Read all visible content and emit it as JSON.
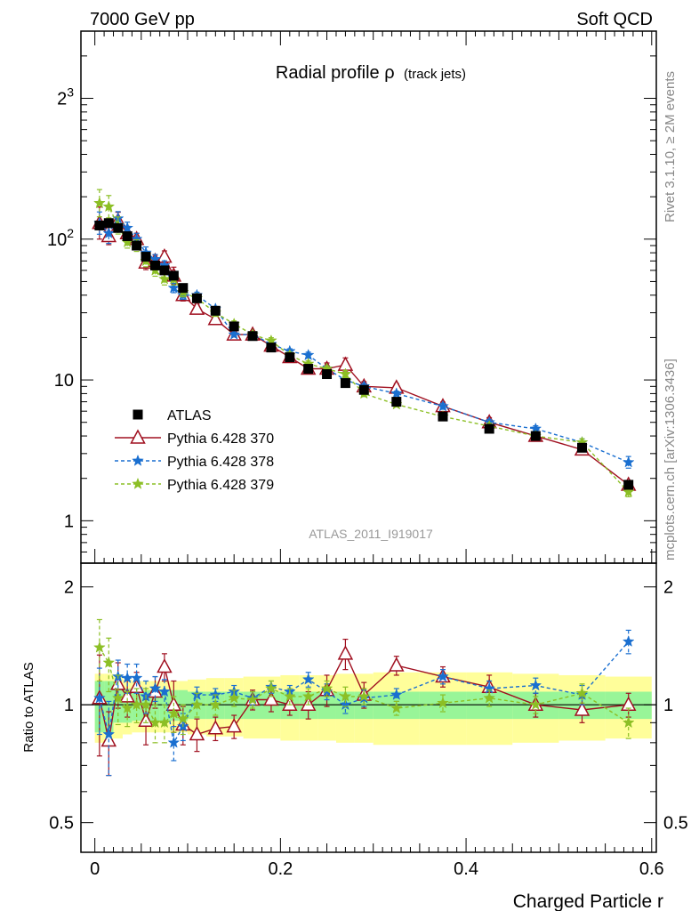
{
  "header": {
    "left": "7000 GeV pp",
    "right": "Soft QCD"
  },
  "side_labels": {
    "top": "Rivet 3.1.10, ≥ 2M events",
    "bottom": "mcplots.cern.ch [arXiv:1306.3436]"
  },
  "watermark": "ATLAS_2011_I919017",
  "chart_data": {
    "type": "scatter",
    "title": "Radial profile ρ",
    "title_suffix": "(track jets)",
    "xlabel": "Charged Particle r",
    "ratio_ylabel": "Ratio to ATLAS",
    "x_ticks": [
      "0",
      "0.2",
      "0.4",
      "0.6"
    ],
    "main_y_ticks": [
      "1",
      "10",
      "10",
      "2"
    ],
    "main_y_tick_exponents": [
      "",
      "",
      "2",
      "3"
    ],
    "ratio_y_ticks": [
      "0.5",
      "1",
      "2"
    ],
    "xlim": [
      -0.015,
      0.605
    ],
    "ylim_main": [
      0.5,
      3000
    ],
    "y_scale": "log",
    "ylim_ratio": [
      0.42,
      2.3
    ],
    "ratio_scale": "log",
    "grid": false,
    "legend": "lower-left",
    "x": [
      0.005,
      0.015,
      0.025,
      0.035,
      0.045,
      0.055,
      0.065,
      0.075,
      0.085,
      0.095,
      0.11,
      0.13,
      0.15,
      0.17,
      0.19,
      0.21,
      0.23,
      0.25,
      0.27,
      0.29,
      0.325,
      0.375,
      0.425,
      0.475,
      0.525,
      0.575
    ],
    "x_halfwidth": [
      0.005,
      0.005,
      0.005,
      0.005,
      0.005,
      0.005,
      0.005,
      0.005,
      0.005,
      0.005,
      0.01,
      0.01,
      0.01,
      0.01,
      0.01,
      0.01,
      0.01,
      0.01,
      0.01,
      0.01,
      0.025,
      0.025,
      0.025,
      0.025,
      0.025,
      0.025
    ],
    "data": {
      "name": "ATLAS",
      "color": "#000000",
      "values": [
        125,
        130,
        120,
        105,
        90,
        75,
        65,
        60,
        55,
        45,
        38,
        31,
        24,
        20.5,
        17,
        14.5,
        12,
        11,
        9.5,
        8.5,
        7,
        5.5,
        4.5,
        4.0,
        3.3,
        1.8
      ],
      "band_inner": [
        0.15,
        0.15,
        0.1,
        0.1,
        0.09,
        0.09,
        0.09,
        0.09,
        0.09,
        0.09,
        0.08,
        0.08,
        0.08,
        0.08,
        0.08,
        0.08,
        0.08,
        0.08,
        0.08,
        0.08,
        0.08,
        0.08,
        0.08,
        0.08,
        0.08,
        0.08
      ],
      "band_outer": [
        0.2,
        0.2,
        0.18,
        0.16,
        0.15,
        0.15,
        0.15,
        0.15,
        0.15,
        0.15,
        0.16,
        0.17,
        0.17,
        0.18,
        0.18,
        0.19,
        0.19,
        0.19,
        0.2,
        0.2,
        0.21,
        0.21,
        0.21,
        0.2,
        0.19,
        0.18
      ]
    },
    "series": [
      {
        "name": "Pythia 6.428 370",
        "color": "#a01020",
        "dashed": false,
        "marker": "triangle",
        "values": [
          130,
          105,
          135,
          110,
          100,
          68,
          70,
          75,
          55,
          40,
          32,
          27,
          21,
          21,
          17.5,
          14.5,
          12,
          12,
          12.8,
          9.0,
          8.8,
          6.5,
          5.0,
          4.0,
          3.2,
          1.8
        ],
        "ratio": [
          1.04,
          0.81,
          1.13,
          1.05,
          1.11,
          0.91,
          1.08,
          1.25,
          1.0,
          0.89,
          0.84,
          0.87,
          0.88,
          1.03,
          1.03,
          1.0,
          1.0,
          1.09,
          1.35,
          1.06,
          1.26,
          1.18,
          1.11,
          1.0,
          0.97,
          1.0
        ],
        "ratio_err": [
          0.3,
          0.15,
          0.15,
          0.12,
          0.1,
          0.12,
          0.1,
          0.1,
          0.15,
          0.1,
          0.08,
          0.06,
          0.06,
          0.06,
          0.07,
          0.06,
          0.08,
          0.1,
          0.12,
          0.08,
          0.07,
          0.07,
          0.08,
          0.07,
          0.07,
          0.07
        ]
      },
      {
        "name": "Pythia 6.428 378",
        "color": "#1a6fd0",
        "dashed": true,
        "marker": "star",
        "values": [
          130,
          110,
          140,
          120,
          100,
          80,
          72,
          65,
          45,
          40,
          40,
          32,
          21,
          21,
          18,
          16,
          15,
          12,
          10,
          9,
          8,
          6.5,
          5.0,
          4.5,
          3.6,
          2.6
        ],
        "ratio": [
          1.04,
          0.84,
          1.18,
          1.17,
          1.17,
          1.05,
          1.1,
          1.08,
          0.8,
          0.88,
          1.06,
          1.06,
          1.08,
          1.04,
          1.11,
          1.08,
          1.16,
          1.08,
          1.0,
          1.04,
          1.06,
          1.18,
          1.1,
          1.12,
          1.06,
          1.45
        ],
        "ratio_err": [
          0.2,
          0.18,
          0.12,
          0.1,
          0.1,
          0.1,
          0.08,
          0.08,
          0.08,
          0.07,
          0.05,
          0.04,
          0.04,
          0.04,
          0.04,
          0.04,
          0.05,
          0.05,
          0.05,
          0.05,
          0.04,
          0.05,
          0.05,
          0.05,
          0.06,
          0.1
        ]
      },
      {
        "name": "Pythia 6.428 379",
        "color": "#8cbf25",
        "dashed": true,
        "marker": "star",
        "values": [
          180,
          170,
          125,
          95,
          90,
          70,
          60,
          52,
          52,
          42,
          38,
          30,
          25,
          21,
          19,
          15,
          13,
          12,
          11,
          8,
          6.7,
          5.5,
          4.7,
          4.0,
          3.6,
          1.6
        ],
        "ratio": [
          1.4,
          1.28,
          1.04,
          0.98,
          1.0,
          1.0,
          0.9,
          0.9,
          0.95,
          0.92,
          1.0,
          1.0,
          1.04,
          1.03,
          1.1,
          1.05,
          1.05,
          1.1,
          1.05,
          1.05,
          0.98,
          1.01,
          1.04,
          1.0,
          1.07,
          0.9
        ],
        "ratio_err": [
          0.25,
          0.2,
          0.15,
          0.1,
          0.1,
          0.1,
          0.1,
          0.1,
          0.1,
          0.08,
          0.07,
          0.06,
          0.05,
          0.05,
          0.05,
          0.05,
          0.05,
          0.05,
          0.06,
          0.05,
          0.04,
          0.05,
          0.05,
          0.05,
          0.06,
          0.08
        ]
      }
    ]
  }
}
